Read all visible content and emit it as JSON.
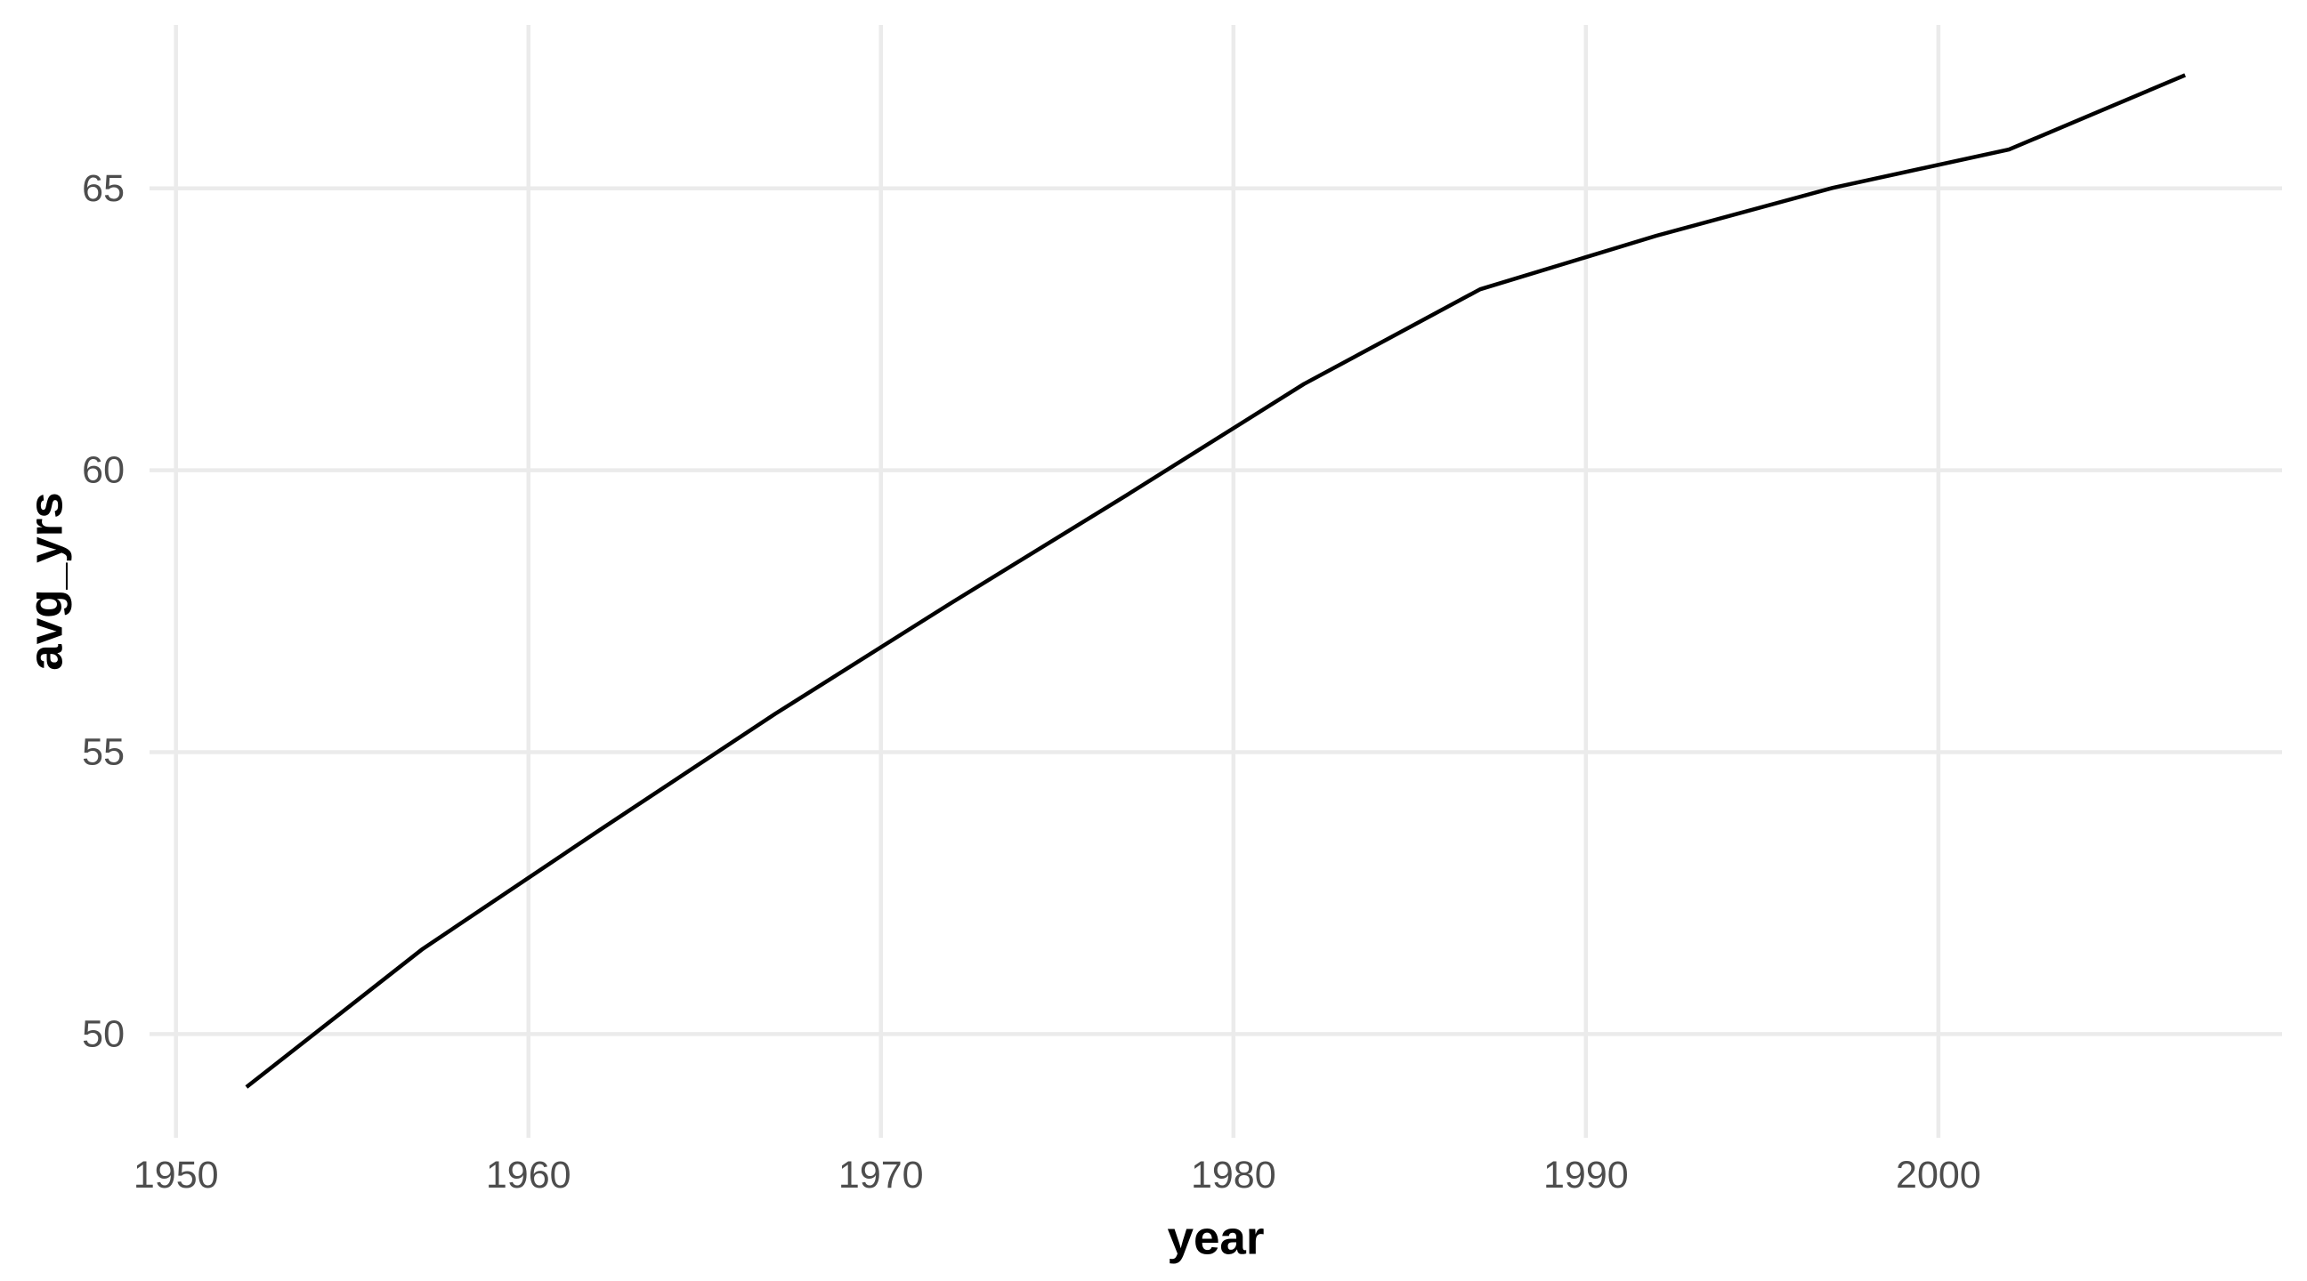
{
  "chart_data": {
    "type": "line",
    "title": "",
    "xlabel": "year",
    "ylabel": "avg_yrs",
    "x": [
      1952,
      1957,
      1962,
      1967,
      1972,
      1977,
      1982,
      1987,
      1992,
      1997,
      2002,
      2007
    ],
    "series": [
      {
        "name": "avg_yrs",
        "values": [
          49.06,
          51.51,
          53.61,
          55.68,
          57.65,
          59.57,
          61.53,
          63.21,
          64.16,
          65.01,
          65.69,
          67.01
        ]
      }
    ],
    "x_ticks": [
      1950,
      1960,
      1970,
      1980,
      1990,
      2000
    ],
    "y_ticks": [
      50,
      55,
      60,
      65
    ],
    "xlim": [
      1949.25,
      2009.75
    ],
    "ylim": [
      48.16,
      67.9
    ],
    "grid": "major-only",
    "legend": "none",
    "colors": {
      "line": "#000000",
      "grid": "#EBEBEB",
      "tick_label": "#4D4D4D",
      "axis_title": "#000000",
      "background": "#FFFFFF"
    }
  }
}
